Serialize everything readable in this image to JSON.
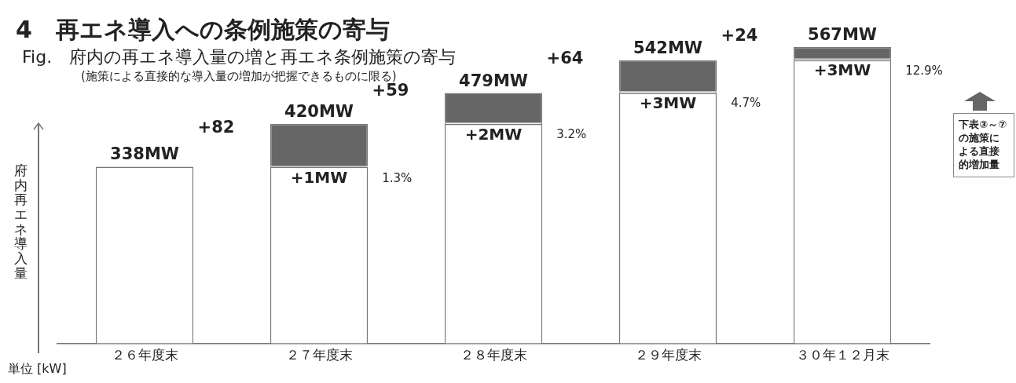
{
  "chart_data": {
    "type": "bar",
    "title": "4　再エネ導入への条例施策の寄与",
    "subtitle": "Fig.　府内の再エネ導入量の増と再エネ条例施策の寄与\n(施策による直接的な導入量の増加が把握できるものに限る)",
    "ylabel": "府内再エネ導入量",
    "categories": [
      "２６年度末",
      "２７年度末",
      "２８年度末",
      "２９年度末",
      "３０年１２月末"
    ],
    "stacked": true,
    "tick_labels": "x",
    "grid": false,
    "legend": false,
    "series": [
      {
        "color": "#ffffff",
        "values": [
          338,
          338,
          420,
          479,
          542
        ]
      },
      {
        "color": "#f3f3f3",
        "values": [
          null,
          1,
          2,
          3,
          3
        ],
        "value_labels": [
          null,
          "+1MW",
          "+2MW",
          "+3MW",
          "+3MW"
        ]
      },
      {
        "color": "#666666",
        "values": [
          null,
          81,
          57,
          60,
          22
        ]
      }
    ],
    "totals": [
      "338MW",
      "420MW",
      "479MW",
      "542MW",
      "567MW"
    ],
    "annotations": [
      "+82",
      "+59",
      "+64",
      "+24",
      "1.3%",
      "3.2%",
      "4.7%",
      "12.9%",
      "単位 [kW]",
      "下表③～⑦の施策による直接的増加量"
    ]
  }
}
